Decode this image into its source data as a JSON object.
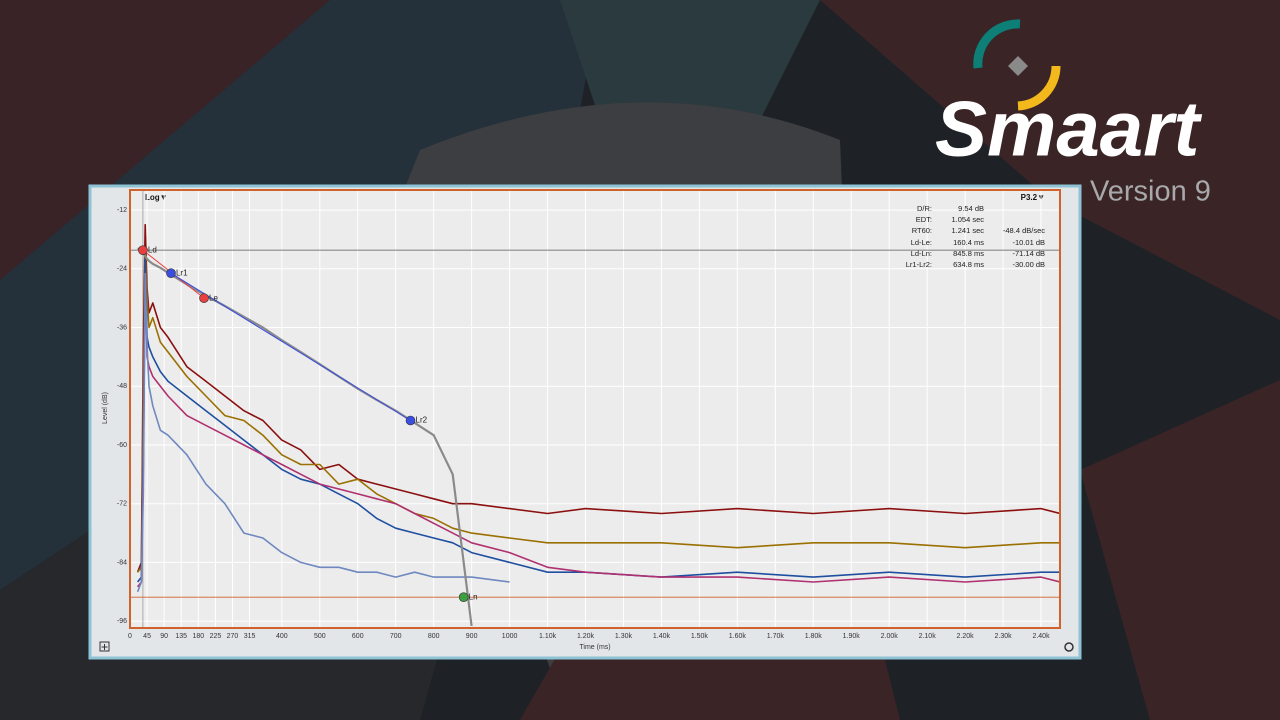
{
  "logo": {
    "brand": "Smaart",
    "version": "Version 9"
  },
  "window": {
    "scale_menu": "Log▼",
    "preset_menu": "P3.2▼",
    "readout": {
      "rows": [
        [
          "D/R:",
          "9.54 dB",
          ""
        ],
        [
          "EDT:",
          "1.054 sec",
          ""
        ],
        [
          "RT60:",
          "1.241 sec",
          "-48.4 dB/sec"
        ],
        [
          "Ld-Le:",
          "160.4 ms",
          "-10.01 dB"
        ],
        [
          "Ld-Ln:",
          "845.8 ms",
          "-71.14 dB"
        ],
        [
          "Lr1-Lr2:",
          "634.8 ms",
          "-30.00 dB"
        ]
      ]
    }
  },
  "chart_data": {
    "type": "line",
    "xlabel": "Time (ms)",
    "ylabel": "Level (dB)",
    "xlim": [
      0,
      2450
    ],
    "ylim": [
      -97.4,
      -7.9
    ],
    "xticks": [
      0,
      45,
      90,
      135,
      180,
      225,
      270,
      315,
      400,
      500,
      600,
      700,
      800,
      900,
      1000,
      {
        "value": 1100,
        "label": "1.10k"
      },
      {
        "value": 1200,
        "label": "1.20k"
      },
      {
        "value": 1300,
        "label": "1.30k"
      },
      {
        "value": 1400,
        "label": "1.40k"
      },
      {
        "value": 1500,
        "label": "1.50k"
      },
      {
        "value": 1600,
        "label": "1.60k"
      },
      {
        "value": 1700,
        "label": "1.70k"
      },
      {
        "value": 1800,
        "label": "1.80k"
      },
      {
        "value": 1900,
        "label": "1.90k"
      },
      {
        "value": 2000,
        "label": "2.00k"
      },
      {
        "value": 2100,
        "label": "2.10k"
      },
      {
        "value": 2200,
        "label": "2.20k"
      },
      {
        "value": 2300,
        "label": "2.30k"
      },
      {
        "value": 2400,
        "label": "2.40k"
      }
    ],
    "yticks": [
      -12,
      -24,
      -36,
      -48,
      -60,
      -72,
      -84,
      -96
    ],
    "grid": true,
    "x": [
      20,
      30,
      35,
      40,
      45,
      50,
      60,
      80,
      100,
      150,
      200,
      250,
      300,
      350,
      400,
      450,
      500,
      550,
      600,
      650,
      700,
      750,
      800,
      850,
      900,
      1000,
      1100,
      1200,
      1400,
      1600,
      1800,
      2000,
      2200,
      2400,
      2450
    ],
    "series": [
      {
        "color": "#8b0f0f",
        "values": [
          -86,
          -84,
          -40,
          -15,
          -28,
          -33,
          -31,
          -36,
          -38,
          -44,
          -47,
          -50,
          -53,
          -55,
          -59,
          -61,
          -65,
          -64,
          -67,
          -68,
          -69,
          -70,
          -71,
          -72,
          -72,
          -73,
          -74,
          -73,
          -74,
          -73,
          -74,
          -73,
          -74,
          -73,
          -74
        ]
      },
      {
        "color": "#9a7000",
        "values": [
          -86,
          -85,
          -50,
          -20,
          -30,
          -36,
          -34,
          -39,
          -41,
          -46,
          -50,
          -54,
          -55,
          -58,
          -62,
          -64,
          -64,
          -68,
          -67,
          -70,
          -72,
          -74,
          -75,
          -77,
          -78,
          -79,
          -80,
          -80,
          -80,
          -81,
          -80,
          -80,
          -81,
          -80,
          -80
        ]
      },
      {
        "color": "#1f4fa0",
        "values": [
          -88,
          -87,
          -60,
          -22,
          -38,
          -40,
          -42,
          -45,
          -47,
          -50,
          -53,
          -56,
          -59,
          -62,
          -65,
          -67,
          -68,
          -70,
          -72,
          -75,
          -77,
          -78,
          -79,
          -80,
          -82,
          -84,
          -86,
          -86,
          -87,
          -86,
          -87,
          -86,
          -87,
          -86,
          -86
        ]
      },
      {
        "color": "#b03070",
        "values": [
          -89,
          -88,
          -65,
          -25,
          -42,
          -44,
          -46,
          -48,
          -50,
          -54,
          -56,
          -58,
          -60,
          -62,
          -64,
          -66,
          -68,
          -69,
          -70,
          -71,
          -72,
          -74,
          -76,
          -78,
          -80,
          -82,
          -85,
          -86,
          -87,
          -87,
          -88,
          -87,
          -88,
          -87,
          -88
        ]
      },
      {
        "color": "#6f88c0",
        "values": [
          -90,
          -88,
          -70,
          -25,
          -40,
          -48,
          -52,
          -57,
          -58,
          -62,
          -68,
          -72,
          -78,
          -79,
          -82,
          -84,
          -85,
          -85,
          -86,
          -86,
          -87,
          -86,
          -87,
          -87,
          -87,
          -88,
          null,
          null,
          null,
          null,
          null,
          null,
          null,
          null,
          null
        ]
      },
      {
        "color": "#8a8a8a",
        "values": [
          -19.8,
          -20.2,
          -20.8,
          -21.4,
          -22,
          -22.4,
          -23,
          -23.8,
          -24.8,
          -27.2,
          -29.5,
          -31.6,
          -33.8,
          -36,
          -38.6,
          -41,
          -43.5,
          -46,
          -48.5,
          -50.8,
          -53,
          -55.5,
          -58,
          -66,
          -97,
          null,
          null,
          null,
          null,
          null,
          null,
          null,
          null,
          null,
          null
        ]
      }
    ],
    "markers": [
      {
        "label": "Ld",
        "x": 34,
        "y": -20.2,
        "color": "#e84040"
      },
      {
        "label": "Lr1",
        "x": 108,
        "y": -24.9,
        "color": "#3a4ee0"
      },
      {
        "label": "Le",
        "x": 195,
        "y": -30,
        "color": "#e84040"
      },
      {
        "label": "Lr2",
        "x": 739,
        "y": -55,
        "color": "#3a4ee0"
      },
      {
        "label": "Ln",
        "x": 879,
        "y": -91.1,
        "color": "#3aa040"
      }
    ]
  }
}
